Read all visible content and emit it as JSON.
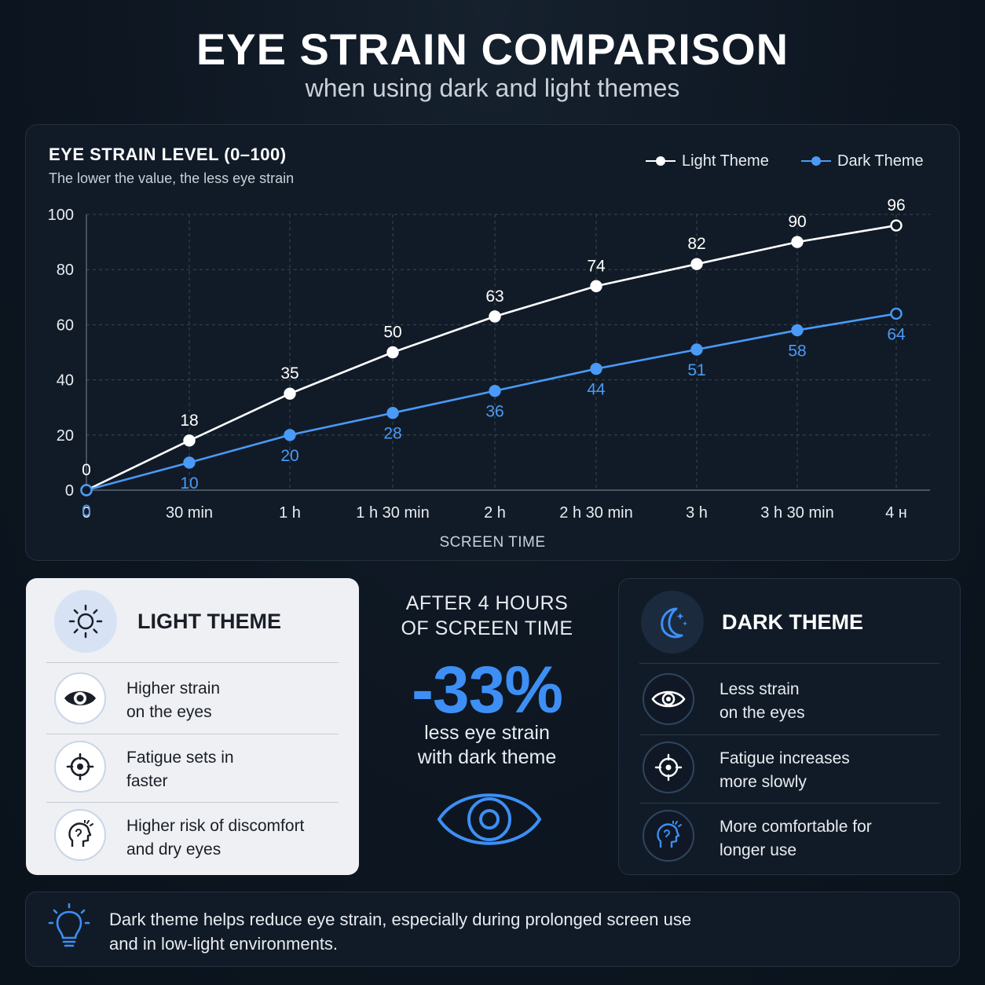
{
  "header": {
    "title": "EYE STRAIN COMPARISON",
    "subtitle": "when using dark and light themes"
  },
  "colors": {
    "light_series": "#ffffff",
    "dark_series": "#4a9af7",
    "accent": "#3d8ff5"
  },
  "chart_data": {
    "type": "line",
    "title": "EYE STRAIN LEVEL (0–100)",
    "subtitle": "The lower the value, the less eye strain",
    "xlabel": "SCREEN TIME",
    "ylabel": "",
    "ylim": [
      0,
      100
    ],
    "yticks": [
      "0",
      "20",
      "40",
      "60",
      "80",
      "100"
    ],
    "categories": [
      "0",
      "30 min",
      "1 h",
      "1 h 30 min",
      "2 h",
      "2 h 30 min",
      "3 h",
      "3 h 30 min",
      "4 н"
    ],
    "grid": true,
    "legend_position": "top-right",
    "series": [
      {
        "name": "Light Theme",
        "color": "#ffffff",
        "values": [
          0,
          18,
          35,
          50,
          63,
          74,
          82,
          90,
          96
        ]
      },
      {
        "name": "Dark Theme",
        "color": "#4a9af7",
        "values": [
          0,
          10,
          20,
          28,
          36,
          44,
          51,
          58,
          64
        ]
      }
    ]
  },
  "light_card": {
    "title": "LIGHT THEME",
    "icon": "sun-icon",
    "items": [
      {
        "icon": "eye-icon",
        "line1": "Higher strain",
        "line2": "on the eyes"
      },
      {
        "icon": "target-icon",
        "line1": "Fatigue sets in",
        "line2": "faster"
      },
      {
        "icon": "head-icon",
        "line1": "Higher risk of discomfort",
        "line2": "and dry eyes"
      }
    ]
  },
  "center_stat": {
    "line1": "AFTER 4 HOURS",
    "line2": "OF SCREEN TIME",
    "value": "-33%",
    "caption1": "less eye strain",
    "caption2": "with dark theme",
    "icon": "eye-icon"
  },
  "dark_card": {
    "title": "DARK THEME",
    "icon": "moon-icon",
    "items": [
      {
        "icon": "eye-icon",
        "line1": "Less strain",
        "line2": "on the eyes"
      },
      {
        "icon": "target-icon",
        "line1": "Fatigue increases",
        "line2": "more slowly"
      },
      {
        "icon": "head-icon",
        "line1": "More comfortable for",
        "line2": "longer use"
      }
    ]
  },
  "footer": {
    "icon": "lightbulb-icon",
    "line1": "Dark theme helps reduce eye strain, especially during prolonged screen use",
    "line2": "and in low-light environments."
  }
}
